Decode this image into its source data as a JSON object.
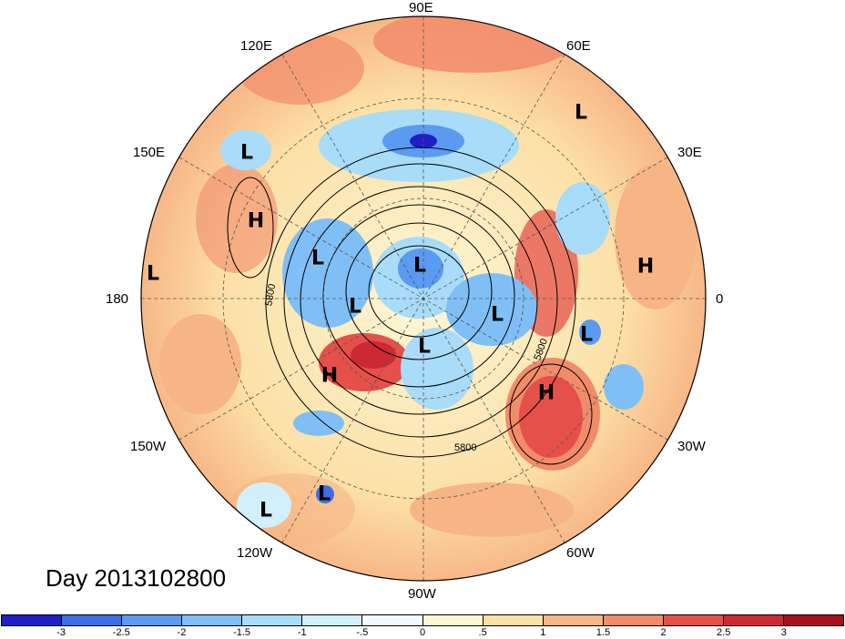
{
  "title": "Day 2013102800",
  "projection": "north-polar-stereographic",
  "longitude_labels": {
    "top": "90E",
    "upper_left": "120E",
    "upper_right": "60E",
    "left_upper": "150E",
    "right_upper": "30E",
    "left": "180",
    "right": "0",
    "left_lower": "150W",
    "right_lower": "30W",
    "lower_left": "120W",
    "lower_right": "60W",
    "bottom": "90W"
  },
  "contour_labels": [
    "5800",
    "5800",
    "5800"
  ],
  "pressure_systems": [
    {
      "type": "L"
    },
    {
      "type": "L"
    },
    {
      "type": "H"
    },
    {
      "type": "L"
    },
    {
      "type": "L"
    },
    {
      "type": "L"
    },
    {
      "type": "L"
    },
    {
      "type": "L"
    },
    {
      "type": "L"
    },
    {
      "type": "H"
    },
    {
      "type": "H"
    },
    {
      "type": "L"
    },
    {
      "type": "H"
    },
    {
      "type": "L"
    },
    {
      "type": "L"
    }
  ],
  "colorbar": {
    "ticks": [
      "-3",
      "-2.5",
      "-2",
      "-1.5",
      "-1",
      "-.5",
      "0",
      ".5",
      "1",
      "1.5",
      "2",
      "2.5",
      "3"
    ],
    "colors": [
      "#1f1fc8",
      "#3c6fe6",
      "#5a9af0",
      "#7fbff5",
      "#a8dcf8",
      "#d2f0fb",
      "#f2fbfd",
      "#fdf7d6",
      "#fce0a6",
      "#f7b585",
      "#f28b6a",
      "#e6504a",
      "#cc2a32",
      "#a5121e"
    ]
  }
}
